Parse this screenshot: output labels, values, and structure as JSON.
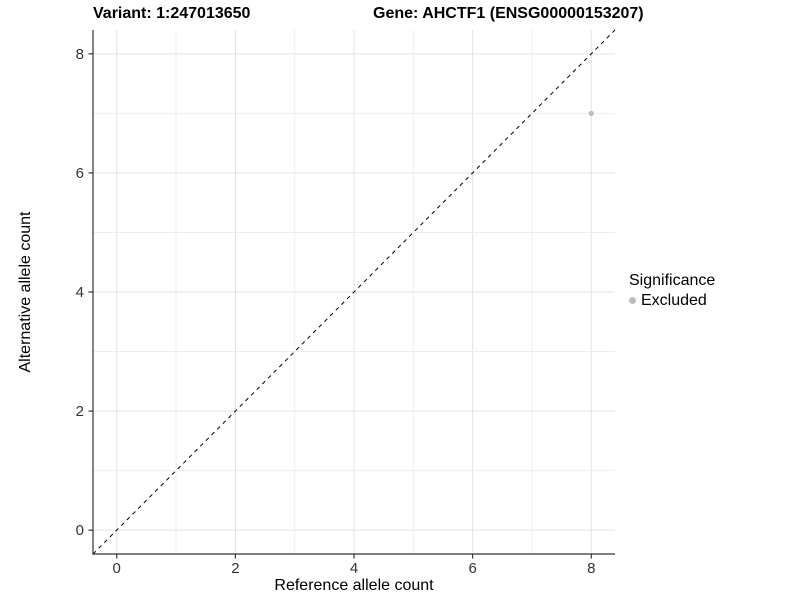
{
  "chart_data": {
    "type": "scatter",
    "title_left": "Variant: 1:247013650",
    "title_right": "Gene: AHCTF1 (ENSG00000153207)",
    "xlabel": "Reference allele count",
    "ylabel": "Alternative allele count",
    "xlim": [
      -0.4,
      8.4
    ],
    "ylim": [
      -0.4,
      8.4
    ],
    "x_major_ticks": [
      0,
      2,
      4,
      6,
      8
    ],
    "y_major_ticks": [
      0,
      2,
      4,
      6,
      8
    ],
    "x_grid": [
      0,
      1,
      2,
      3,
      4,
      5,
      6,
      7,
      8
    ],
    "y_grid": [
      0,
      1,
      2,
      3,
      4,
      5,
      6,
      7,
      8
    ],
    "grid": true,
    "series": [
      {
        "name": "Excluded",
        "color": "#bdbdbd",
        "points": [
          {
            "x": 8,
            "y": 7
          }
        ]
      }
    ],
    "reference_line": {
      "type": "identity",
      "slope": 1,
      "intercept": 0,
      "style": "dashed",
      "color": "#000000"
    },
    "legend": {
      "title": "Significance",
      "position": "right",
      "entries": [
        {
          "label": "Excluded",
          "color": "#bdbdbd"
        }
      ]
    },
    "colors": {
      "background": "#ffffff",
      "grid_major": "#e3e3e3",
      "grid_minor": "#eeeeee",
      "axis_line": "#333333",
      "tick_mark": "#333333",
      "tick_label": "#333333"
    }
  }
}
